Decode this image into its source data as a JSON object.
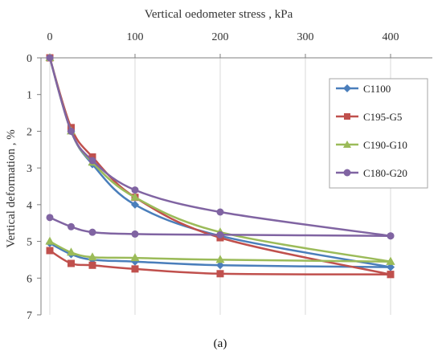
{
  "figure": {
    "caption": "(a)"
  },
  "chart_data": {
    "type": "line",
    "xlabel": "Vertical  oedometer stress , kPa",
    "ylabel": "Vertical deformation , %",
    "x_axis_position": "top",
    "y_axis_inverted": true,
    "xlim": [
      0,
      440
    ],
    "ylim": [
      0,
      7
    ],
    "x_ticks": [
      0,
      100,
      200,
      300,
      400
    ],
    "y_ticks": [
      0,
      1,
      2,
      3,
      4,
      5,
      6,
      7
    ],
    "x_tick_labels": [
      "0",
      "100",
      "200",
      "300",
      "400"
    ],
    "y_tick_labels": [
      "0",
      "1",
      "2",
      "3",
      "4",
      "5",
      "6",
      "7"
    ],
    "grid": {
      "vertical": true,
      "horizontal": false
    },
    "legend_position": "right",
    "series": [
      {
        "name": "C1100",
        "color": "#4A7EBB",
        "marker": "diamond",
        "loading_x": [
          0,
          25,
          50,
          100,
          200,
          400
        ],
        "loading_y": [
          0,
          2.0,
          2.9,
          4.0,
          4.85,
          5.7
        ],
        "unloading_x": [
          400,
          200,
          100,
          50,
          25,
          0
        ],
        "unloading_y": [
          5.7,
          5.65,
          5.55,
          5.5,
          5.35,
          5.05
        ]
      },
      {
        "name": "C195-G5",
        "color": "#C0504D",
        "marker": "square",
        "loading_x": [
          0,
          25,
          50,
          100,
          200,
          400
        ],
        "loading_y": [
          0,
          1.9,
          2.7,
          3.8,
          4.9,
          5.9
        ],
        "unloading_x": [
          400,
          200,
          100,
          50,
          25,
          0
        ],
        "unloading_y": [
          5.9,
          5.88,
          5.75,
          5.65,
          5.6,
          5.25
        ]
      },
      {
        "name": "C190-G10",
        "color": "#9BBB59",
        "marker": "triangle",
        "loading_x": [
          0,
          25,
          50,
          100,
          200,
          400
        ],
        "loading_y": [
          0,
          2.0,
          2.85,
          3.8,
          4.75,
          5.55
        ],
        "unloading_x": [
          400,
          200,
          100,
          50,
          25,
          0
        ],
        "unloading_y": [
          5.55,
          5.5,
          5.45,
          5.43,
          5.3,
          5.0
        ]
      },
      {
        "name": "C180-G20",
        "color": "#8064A2",
        "marker": "circle",
        "loading_x": [
          0,
          25,
          50,
          100,
          200,
          400
        ],
        "loading_y": [
          0,
          2.0,
          2.8,
          3.6,
          4.2,
          4.85
        ],
        "unloading_x": [
          400,
          200,
          100,
          50,
          25,
          0
        ],
        "unloading_y": [
          4.85,
          4.82,
          4.8,
          4.75,
          4.6,
          4.35
        ]
      }
    ]
  }
}
